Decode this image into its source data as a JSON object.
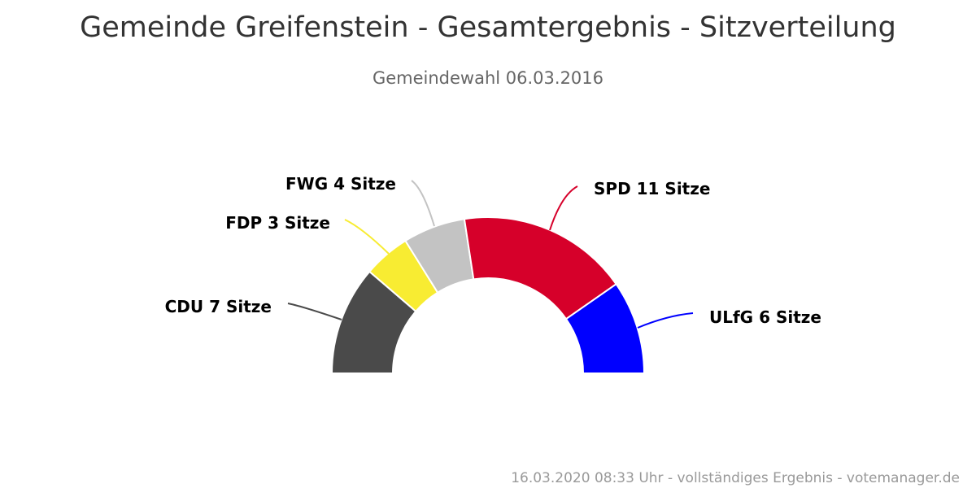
{
  "chart_data": {
    "type": "pie",
    "variant": "semi-donut",
    "title": "Gemeinde Greifenstein - Gesamtergebnis - Sitzverteilung",
    "subtitle": "Gemeindewahl 06.03.2016",
    "credits": "16.03.2020 08:33 Uhr - vollständiges Ergebnis - votemanager.de",
    "unit": "Sitze",
    "series": [
      {
        "name": "CDU",
        "value": 7,
        "label": "CDU 7 Sitze",
        "color": "#4a4a4a"
      },
      {
        "name": "FDP",
        "value": 3,
        "label": "FDP 3 Sitze",
        "color": "#f8ec32"
      },
      {
        "name": "FWG",
        "value": 4,
        "label": "FWG 4 Sitze",
        "color": "#c3c3c3"
      },
      {
        "name": "SPD",
        "value": 11,
        "label": "SPD 11 Sitze",
        "color": "#d6002a"
      },
      {
        "name": "ULfG",
        "value": 6,
        "label": "ULfG 6 Sitze",
        "color": "#0000ff"
      }
    ]
  }
}
